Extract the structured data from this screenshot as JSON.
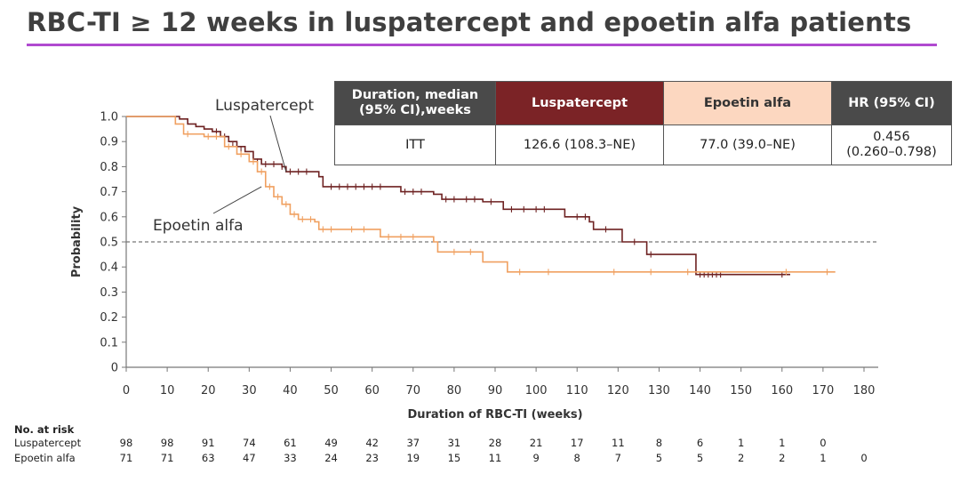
{
  "title": "RBC-TI ≥ 12 weeks in luspatercept and epoetin alfa patients",
  "table": {
    "headers": [
      "Duration, median (95% CI),weeks",
      "Luspatercept",
      "Epoetin alfa",
      "HR (95% CI)"
    ],
    "row": {
      "label": "ITT",
      "luspatercept": "126.6 (108.3–NE)",
      "epoetin": "77.0 (39.0–NE)",
      "hr_line1": "0.456",
      "hr_line2": "(0.260–0.798)"
    }
  },
  "colors": {
    "luspatercept": "#6e2222",
    "epoetin": "#f0a060",
    "title_rule": "#b04ad0",
    "reference_line": "#555555"
  },
  "chart_data": {
    "type": "line",
    "xlabel": "Duration of RBC-TI (weeks)",
    "ylabel": "Probability",
    "xlim": [
      0,
      180
    ],
    "ylim": [
      0,
      1.0
    ],
    "x_ticks": [
      0,
      10,
      20,
      30,
      40,
      50,
      60,
      70,
      80,
      90,
      100,
      110,
      120,
      130,
      140,
      150,
      160,
      170,
      180
    ],
    "y_ticks": [
      "0",
      "0.1",
      "0.2",
      "0.3",
      "0.4",
      "0.5",
      "0.6",
      "0.7",
      "0.8",
      "0.9",
      "1.0"
    ],
    "reference_line": {
      "y": 0.5,
      "style": "dashed"
    },
    "series": [
      {
        "name": "Luspatercept",
        "color": "#6e2222",
        "steps": [
          [
            0,
            1.0
          ],
          [
            13,
            0.99
          ],
          [
            15,
            0.97
          ],
          [
            17,
            0.96
          ],
          [
            19,
            0.95
          ],
          [
            21,
            0.94
          ],
          [
            23,
            0.92
          ],
          [
            25,
            0.9
          ],
          [
            27,
            0.88
          ],
          [
            29,
            0.86
          ],
          [
            31,
            0.83
          ],
          [
            33,
            0.81
          ],
          [
            38,
            0.8
          ],
          [
            39,
            0.78
          ],
          [
            47,
            0.76
          ],
          [
            48,
            0.72
          ],
          [
            65,
            0.72
          ],
          [
            67,
            0.7
          ],
          [
            75,
            0.69
          ],
          [
            77,
            0.67
          ],
          [
            87,
            0.66
          ],
          [
            92,
            0.63
          ],
          [
            107,
            0.6
          ],
          [
            113,
            0.58
          ],
          [
            114,
            0.55
          ],
          [
            121,
            0.5
          ],
          [
            127,
            0.45
          ],
          [
            138,
            0.45
          ],
          [
            139,
            0.37
          ],
          [
            162,
            0.37
          ]
        ],
        "censors": [
          [
            22,
            0.94
          ],
          [
            24,
            0.92
          ],
          [
            26,
            0.89
          ],
          [
            28,
            0.87
          ],
          [
            30,
            0.84
          ],
          [
            32,
            0.82
          ],
          [
            34,
            0.81
          ],
          [
            36,
            0.81
          ],
          [
            38,
            0.8
          ],
          [
            40,
            0.78
          ],
          [
            42,
            0.78
          ],
          [
            44,
            0.78
          ],
          [
            50,
            0.72
          ],
          [
            52,
            0.72
          ],
          [
            54,
            0.72
          ],
          [
            56,
            0.72
          ],
          [
            58,
            0.72
          ],
          [
            60,
            0.72
          ],
          [
            62,
            0.72
          ],
          [
            68,
            0.7
          ],
          [
            70,
            0.7
          ],
          [
            72,
            0.7
          ],
          [
            78,
            0.67
          ],
          [
            80,
            0.67
          ],
          [
            83,
            0.67
          ],
          [
            85,
            0.67
          ],
          [
            89,
            0.66
          ],
          [
            94,
            0.63
          ],
          [
            97,
            0.63
          ],
          [
            100,
            0.63
          ],
          [
            102,
            0.63
          ],
          [
            110,
            0.6
          ],
          [
            112,
            0.6
          ],
          [
            117,
            0.55
          ],
          [
            124,
            0.5
          ],
          [
            128,
            0.45
          ],
          [
            140,
            0.37
          ],
          [
            141,
            0.37
          ],
          [
            142,
            0.37
          ],
          [
            143,
            0.37
          ],
          [
            144,
            0.37
          ],
          [
            145,
            0.37
          ],
          [
            160,
            0.37
          ]
        ]
      },
      {
        "name": "Epoetin alfa",
        "color": "#f0a060",
        "steps": [
          [
            0,
            1.0
          ],
          [
            12,
            0.97
          ],
          [
            14,
            0.93
          ],
          [
            19,
            0.92
          ],
          [
            24,
            0.88
          ],
          [
            27,
            0.85
          ],
          [
            30,
            0.82
          ],
          [
            32,
            0.78
          ],
          [
            34,
            0.72
          ],
          [
            36,
            0.68
          ],
          [
            38,
            0.65
          ],
          [
            40,
            0.61
          ],
          [
            42,
            0.59
          ],
          [
            46,
            0.58
          ],
          [
            47,
            0.55
          ],
          [
            62,
            0.52
          ],
          [
            75,
            0.5
          ],
          [
            76,
            0.46
          ],
          [
            83,
            0.46
          ],
          [
            87,
            0.42
          ],
          [
            93,
            0.38
          ],
          [
            173,
            0.38
          ]
        ],
        "censors": [
          [
            15,
            0.93
          ],
          [
            20,
            0.92
          ],
          [
            22,
            0.92
          ],
          [
            25,
            0.88
          ],
          [
            28,
            0.85
          ],
          [
            31,
            0.82
          ],
          [
            33,
            0.78
          ],
          [
            35,
            0.72
          ],
          [
            37,
            0.68
          ],
          [
            39,
            0.65
          ],
          [
            41,
            0.61
          ],
          [
            43,
            0.59
          ],
          [
            45,
            0.59
          ],
          [
            48,
            0.55
          ],
          [
            50,
            0.55
          ],
          [
            55,
            0.55
          ],
          [
            58,
            0.55
          ],
          [
            64,
            0.52
          ],
          [
            67,
            0.52
          ],
          [
            70,
            0.52
          ],
          [
            80,
            0.46
          ],
          [
            84,
            0.46
          ],
          [
            96,
            0.38
          ],
          [
            103,
            0.38
          ],
          [
            119,
            0.38
          ],
          [
            128,
            0.38
          ],
          [
            137,
            0.38
          ],
          [
            161,
            0.38
          ],
          [
            171,
            0.38
          ]
        ]
      }
    ],
    "annotations": [
      {
        "text": "Luspatercept",
        "series": "Luspatercept",
        "arrow_to": [
          39,
          0.78
        ]
      },
      {
        "text": "Epoetin alfa",
        "series": "Epoetin alfa",
        "arrow_to": [
          33,
          0.72
        ]
      }
    ],
    "at_risk": {
      "heading": "No. at risk",
      "rows": [
        {
          "label": "Luspatercept",
          "values": [
            "98",
            "98",
            "91",
            "74",
            "61",
            "49",
            "42",
            "37",
            "31",
            "28",
            "21",
            "17",
            "11",
            "8",
            "6",
            "1",
            "1",
            "0"
          ]
        },
        {
          "label": "Epoetin alfa",
          "values": [
            "71",
            "71",
            "63",
            "47",
            "33",
            "24",
            "23",
            "19",
            "15",
            "11",
            "9",
            "8",
            "7",
            "5",
            "5",
            "2",
            "2",
            "1",
            "0"
          ]
        }
      ]
    }
  }
}
